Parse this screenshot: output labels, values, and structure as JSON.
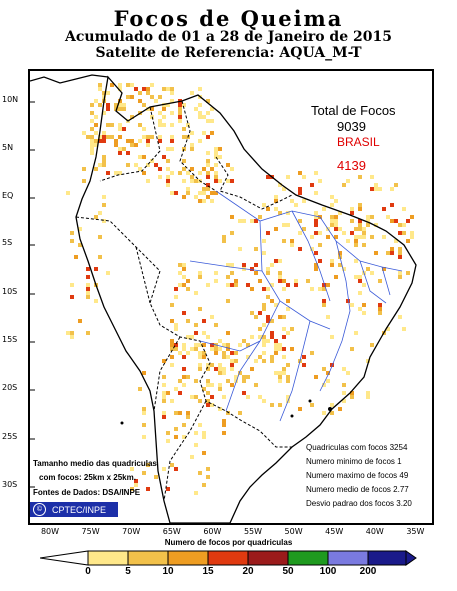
{
  "title": "Focos de Queima",
  "subtitle": "Acumulado de 01 a 28 de Janeiro de 2015",
  "satellite": "Satelite de Referencia: AQUA_M-T",
  "totals": {
    "label": "Total de Focos",
    "total": "9039",
    "brazil_label": "BRASIL",
    "brazil": "4139"
  },
  "lat_labels": [
    "10N",
    "5N",
    "EQ",
    "5S",
    "10S",
    "15S",
    "20S",
    "25S",
    "30S"
  ],
  "lon_labels": [
    "80W",
    "75W",
    "70W",
    "65W",
    "60W",
    "55W",
    "50W",
    "45W",
    "40W",
    "35W"
  ],
  "quad_stats": [
    "Quadriculas com focos 3254",
    "Numero minimo de focos 1",
    "Numero maximo de focos 49",
    "Numero medio de focos 2.77",
    "Desvio padrao dos focos 3.20"
  ],
  "legend_text": {
    "size_label": "Tamanho medio das quadriculas",
    "size_value": "com focos: 25km x 25km.",
    "sources": "Fontes de Dados: DSA/INPE"
  },
  "logo": {
    "copyright": "©",
    "text": "CPTEC/INPE"
  },
  "colorbar": {
    "title": "Numero de focos por quadriculas",
    "ticks": [
      "0",
      "5",
      "10",
      "15",
      "20",
      "50",
      "100",
      "200"
    ],
    "colors": [
      "#ffe88a",
      "#f2c14a",
      "#ee9d22",
      "#e03a10",
      "#9b1b1b",
      "#1f9a1f",
      "#7a7ae0",
      "#1a1a8a"
    ]
  }
}
